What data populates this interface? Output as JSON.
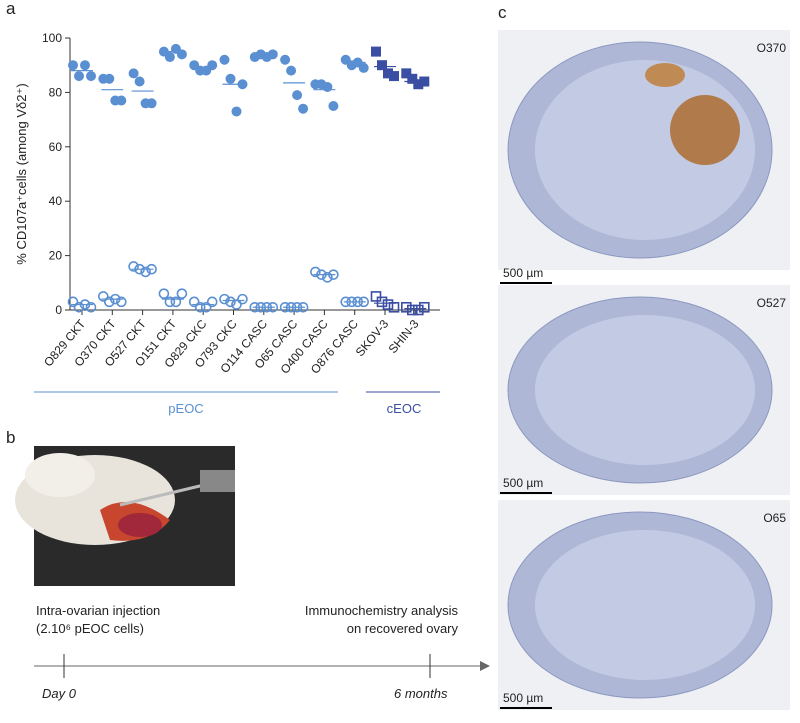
{
  "chart_data": {
    "type": "dot",
    "y_label": "% CD107a⁺cells (among Vδ2⁺)",
    "categories": [
      "O829 CKT",
      "O370 CKT",
      "O527 CKT",
      "O151 CKT",
      "O829 CKC",
      "O793 CKC",
      "O114 CASC",
      "O65 CASC",
      "O400 CASC",
      "O876 CASC",
      "SKOV-3",
      "SHIN-3"
    ],
    "ylim": [
      0,
      100
    ],
    "yticks": [
      0,
      20,
      40,
      60,
      80,
      100
    ],
    "groups": [
      "pEOC",
      "cEOC"
    ],
    "series": [
      {
        "color": "#5a8fd2",
        "marker": "circle",
        "fill": true,
        "values": [
          [
            90,
            86,
            90,
            86
          ],
          [
            85,
            85,
            77,
            77
          ],
          [
            87,
            84,
            76,
            76
          ],
          [
            95,
            93,
            96,
            94
          ],
          [
            90,
            88,
            88,
            90
          ],
          [
            92,
            85,
            73,
            83
          ],
          [
            93,
            94,
            93,
            94
          ],
          [
            92,
            88,
            79,
            74
          ],
          [
            83,
            83,
            82,
            75
          ],
          [
            92,
            90,
            91,
            89
          ],
          null,
          null
        ],
        "means": [
          88,
          81,
          80.5,
          95,
          89,
          83,
          93.5,
          83.5,
          81,
          91,
          null,
          null
        ]
      },
      {
        "color": "#3a4ea3",
        "marker": "square",
        "fill": true,
        "values": [
          null,
          null,
          null,
          null,
          null,
          null,
          null,
          null,
          null,
          null,
          [
            95,
            90,
            87,
            86
          ],
          [
            87,
            85,
            83,
            84
          ]
        ],
        "means": [
          null,
          null,
          null,
          null,
          null,
          null,
          null,
          null,
          null,
          null,
          89.5,
          84
        ]
      },
      {
        "color": "#5a8fd2",
        "marker": "circle",
        "fill": false,
        "values": [
          [
            3,
            1,
            2,
            1
          ],
          [
            5,
            3,
            4,
            3
          ],
          [
            16,
            15,
            14,
            15
          ],
          [
            6,
            3,
            3,
            6
          ],
          [
            3,
            1,
            1,
            3
          ],
          [
            4,
            3,
            2,
            4
          ],
          [
            1,
            1,
            1,
            1
          ],
          [
            1,
            1,
            1,
            1
          ],
          [
            14,
            13,
            12,
            13
          ],
          [
            3,
            3,
            3,
            3
          ],
          null,
          null
        ],
        "means": [
          2,
          4,
          15,
          4,
          2,
          3.5,
          1,
          1,
          13,
          3,
          null,
          null
        ]
      },
      {
        "color": "#3a4ea3",
        "marker": "square",
        "fill": false,
        "values": [
          null,
          null,
          null,
          null,
          null,
          null,
          null,
          null,
          null,
          null,
          [
            5,
            3,
            2,
            1
          ],
          [
            1,
            0,
            0,
            1
          ]
        ],
        "means": [
          null,
          null,
          null,
          null,
          null,
          null,
          null,
          null,
          null,
          null,
          2.5,
          0.5
        ]
      }
    ]
  },
  "panel_labels": [
    "a",
    "b",
    "c"
  ],
  "timeline": {
    "start_line1": "Intra-ovarian injection",
    "start_line2": "(2.10⁶ pEOC cells)",
    "end_line1": "Immunochemistry analysis",
    "end_line2": "on recovered ovary",
    "start_day": "Day 0",
    "end_day": "6 months"
  },
  "histology": [
    {
      "sample": "O370",
      "scale": "500 µm"
    },
    {
      "sample": "O527",
      "scale": "500 µm"
    },
    {
      "sample": "O65",
      "scale": "500 µm"
    }
  ]
}
